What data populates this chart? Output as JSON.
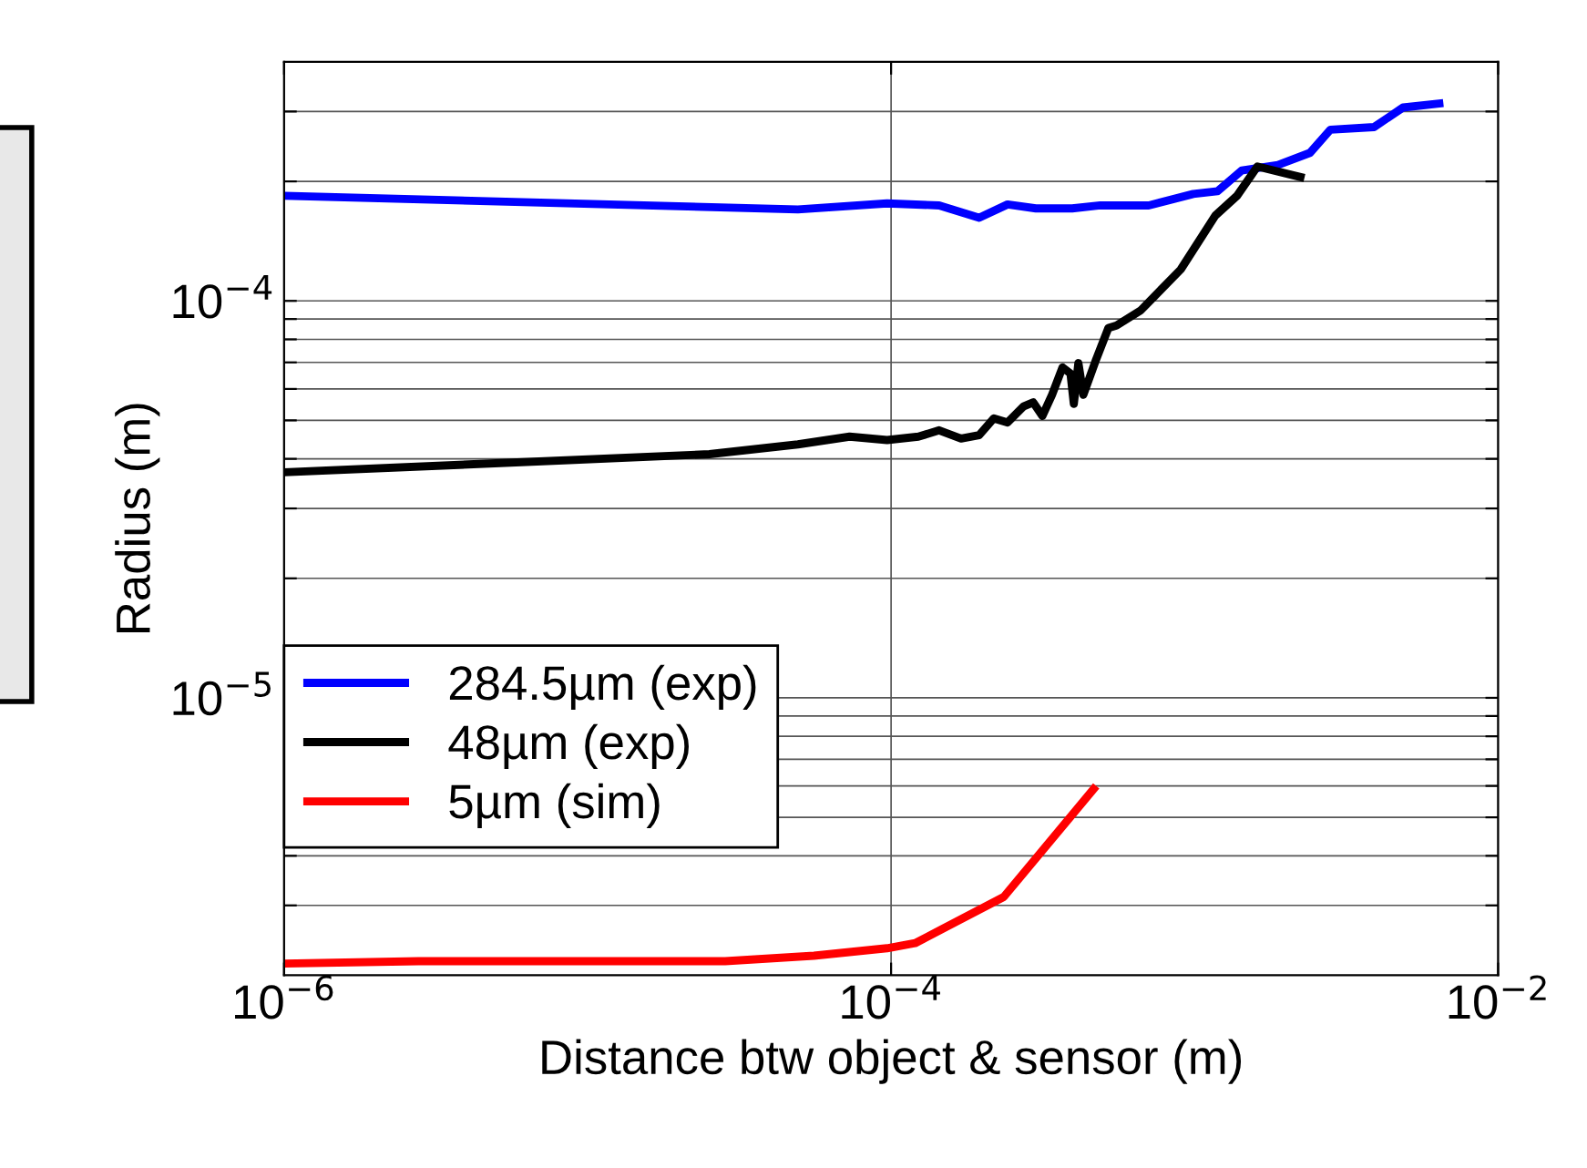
{
  "chart_data": {
    "type": "line",
    "xlabel": "Distance btw object & sensor (m)",
    "ylabel": "Radius (m)",
    "log": "xy",
    "grid": true,
    "legend": "lower left",
    "line_style": "solid",
    "marker": "none",
    "xlim": [
      1e-06,
      0.01
    ],
    "xticks": [
      {
        "value": 1e-06,
        "label": "10$^{−6}$"
      },
      {
        "value": 0.0001,
        "label": "10$^{−4}$"
      },
      {
        "value": 0.01,
        "label": "10$^{−2}$"
      }
    ],
    "ylim": [
      2e-06,
      0.0004
    ],
    "yticks": [
      {
        "value": 3e-06,
        "label": null
      },
      {
        "value": 4e-06,
        "label": null
      },
      {
        "value": 5e-06,
        "label": null
      },
      {
        "value": 6e-06,
        "label": null
      },
      {
        "value": 7e-06,
        "label": null
      },
      {
        "value": 8e-06,
        "label": null
      },
      {
        "value": 9e-06,
        "label": null
      },
      {
        "value": 1e-05,
        "label": "10$^{−5}$"
      },
      {
        "value": 2e-05,
        "label": null
      },
      {
        "value": 3e-05,
        "label": null
      },
      {
        "value": 4e-05,
        "label": null
      },
      {
        "value": 5e-05,
        "label": null
      },
      {
        "value": 6e-05,
        "label": null
      },
      {
        "value": 7e-05,
        "label": null
      },
      {
        "value": 8e-05,
        "label": null
      },
      {
        "value": 9e-05,
        "label": null
      },
      {
        "value": 0.0001,
        "label": "10$^{−4}$"
      },
      {
        "value": 0.0002,
        "label": null
      },
      {
        "value": 0.0003,
        "label": null
      }
    ],
    "series": [
      {
        "name": "284.5µm (exp)",
        "color": "#0000ff",
        "x": [
          1e-06,
          4.93e-05,
          9.7e-05,
          0.000144,
          0.000195,
          0.000242,
          0.0003,
          0.000395,
          0.000489,
          0.000706,
          0.00099,
          0.00119,
          0.00143,
          0.00188,
          0.0024,
          0.0028,
          0.0039,
          0.00486,
          0.0066
        ],
        "values": [
          0.000184,
          0.00017,
          0.000176,
          0.000174,
          0.000162,
          0.000175,
          0.000171,
          0.000171,
          0.000174,
          0.000174,
          0.000186,
          0.000189,
          0.000213,
          0.00022,
          0.000236,
          0.00027,
          0.000274,
          0.000307,
          0.000315
        ]
      },
      {
        "name": "48µm (exp)",
        "color": "#000000",
        "x": [
          1e-06,
          2.52e-05,
          4.93e-05,
          7.3e-05,
          9.7e-05,
          0.000123,
          0.000144,
          0.00017,
          0.000195,
          0.000218,
          0.000242,
          0.000273,
          0.000294,
          0.000315,
          0.000339,
          0.000367,
          0.00039,
          0.0004,
          0.000414,
          0.00043,
          0.000474,
          0.00052,
          0.000553,
          0.000664,
          0.0009,
          0.00117,
          0.00138,
          0.00161,
          0.0023
        ],
        "values": [
          3.7e-05,
          4.11e-05,
          4.35e-05,
          4.55e-05,
          4.46e-05,
          4.55e-05,
          4.72e-05,
          4.5e-05,
          4.59e-05,
          5.06e-05,
          4.94e-05,
          5.42e-05,
          5.55e-05,
          5.13e-05,
          5.8e-05,
          6.8e-05,
          6.56e-05,
          5.5e-05,
          6.97e-05,
          5.8e-05,
          7.13e-05,
          8.55e-05,
          8.67e-05,
          9.46e-05,
          0.00012,
          0.000164,
          0.000184,
          0.000218,
          0.000204
        ]
      },
      {
        "name": "5µm (sim)",
        "color": "#ff0000",
        "x": [
          1e-06,
          2.77e-06,
          2.84e-05,
          5.57e-05,
          9.7e-05,
          0.00012,
          0.000235,
          0.000474
        ],
        "values": [
          2.14e-06,
          2.17e-06,
          2.17e-06,
          2.24e-06,
          2.34e-06,
          2.41e-06,
          3.15e-06,
          6e-06
        ]
      }
    ]
  }
}
